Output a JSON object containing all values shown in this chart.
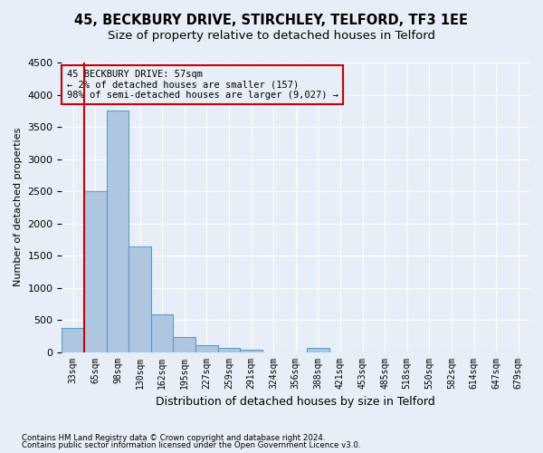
{
  "title1": "45, BECKBURY DRIVE, STIRCHLEY, TELFORD, TF3 1EE",
  "title2": "Size of property relative to detached houses in Telford",
  "xlabel": "Distribution of detached houses by size in Telford",
  "ylabel": "Number of detached properties",
  "footer1": "Contains HM Land Registry data © Crown copyright and database right 2024.",
  "footer2": "Contains public sector information licensed under the Open Government Licence v3.0.",
  "annotation_line1": "45 BECKBURY DRIVE: 57sqm",
  "annotation_line2": "← 2% of detached houses are smaller (157)",
  "annotation_line3": "98% of semi-detached houses are larger (9,027) →",
  "bar_values": [
    370,
    2500,
    3750,
    1640,
    590,
    230,
    105,
    60,
    40,
    0,
    0,
    60,
    0,
    0,
    0,
    0,
    0,
    0,
    0,
    0,
    0
  ],
  "bin_labels": [
    "33sqm",
    "65sqm",
    "98sqm",
    "130sqm",
    "162sqm",
    "195sqm",
    "227sqm",
    "259sqm",
    "291sqm",
    "324sqm",
    "356sqm",
    "388sqm",
    "421sqm",
    "453sqm",
    "485sqm",
    "518sqm",
    "550sqm",
    "582sqm",
    "614sqm",
    "647sqm",
    "679sqm"
  ],
  "bar_color": "#aec6df",
  "bar_edge_color": "#5a9ec8",
  "ylim": [
    0,
    4500
  ],
  "yticks": [
    0,
    500,
    1000,
    1500,
    2000,
    2500,
    3000,
    3500,
    4000,
    4500
  ],
  "bg_color": "#e8eef8",
  "grid_color": "#ffffff",
  "annotation_box_color": "#cc0000",
  "vline_color": "#cc0000",
  "title_fontsize": 10.5,
  "subtitle_fontsize": 9.5
}
